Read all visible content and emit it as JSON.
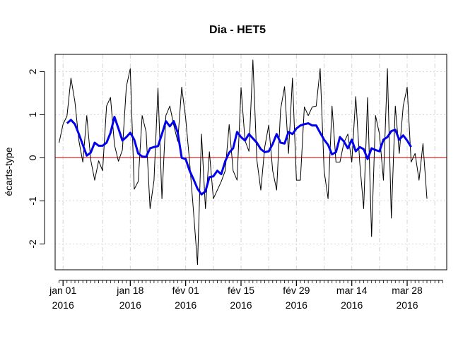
{
  "chart_data": {
    "type": "line",
    "title": "Dia - HET5",
    "xlabel": "",
    "ylabel": "écarts-type",
    "ylim": [
      -2.6,
      2.4
    ],
    "yticks": [
      -2,
      -1,
      0,
      1,
      2
    ],
    "ytick_labels": [
      "-2",
      "-1",
      "0",
      "1",
      "2"
    ],
    "x_start": "2015-12-30",
    "x_end": "2016-04-07",
    "xticks": [
      {
        "date": "2016-01-01",
        "label1": "jan 01",
        "label2": "2016"
      },
      {
        "date": "2016-01-18",
        "label1": "jan 18",
        "label2": "2016"
      },
      {
        "date": "2016-02-01",
        "label1": "fév 01",
        "label2": "2016"
      },
      {
        "date": "2016-02-15",
        "label1": "fév 15",
        "label2": "2016"
      },
      {
        "date": "2016-02-29",
        "label1": "fév 29",
        "label2": "2016"
      },
      {
        "date": "2016-03-14",
        "label1": "mar 14",
        "label2": "2016"
      },
      {
        "date": "2016-03-28",
        "label1": "mar 28",
        "label2": "2016"
      }
    ],
    "minor_tick_dates": [
      "2015-12-31",
      "2016-01-01",
      "2016-01-02",
      "2016-01-03",
      "2016-01-04",
      "2016-01-05",
      "2016-01-06",
      "2016-01-07",
      "2016-01-08",
      "2016-01-09",
      "2016-01-10",
      "2016-01-11",
      "2016-01-12",
      "2016-01-13",
      "2016-01-14",
      "2016-01-15",
      "2016-01-16",
      "2016-01-17",
      "2016-01-18",
      "2016-01-19",
      "2016-01-20",
      "2016-01-21",
      "2016-01-22",
      "2016-01-23",
      "2016-01-24",
      "2016-01-25",
      "2016-01-26",
      "2016-01-27",
      "2016-01-28",
      "2016-01-29",
      "2016-01-30",
      "2016-01-31",
      "2016-02-01",
      "2016-02-02",
      "2016-02-03",
      "2016-02-04",
      "2016-02-05",
      "2016-02-06",
      "2016-02-07",
      "2016-02-08",
      "2016-02-09",
      "2016-02-10",
      "2016-02-11",
      "2016-02-12",
      "2016-02-13",
      "2016-02-14",
      "2016-02-15",
      "2016-02-16",
      "2016-02-17",
      "2016-02-18",
      "2016-02-19",
      "2016-02-20",
      "2016-02-21",
      "2016-02-22",
      "2016-02-23",
      "2016-02-24",
      "2016-02-25",
      "2016-02-26",
      "2016-02-27",
      "2016-02-28",
      "2016-02-29",
      "2016-03-01",
      "2016-03-02",
      "2016-03-03",
      "2016-03-04",
      "2016-03-05",
      "2016-03-06",
      "2016-03-07",
      "2016-03-08",
      "2016-03-09",
      "2016-03-10",
      "2016-03-11",
      "2016-03-12",
      "2016-03-13",
      "2016-03-14",
      "2016-03-15",
      "2016-03-16",
      "2016-03-17",
      "2016-03-18",
      "2016-03-19",
      "2016-03-20",
      "2016-03-21",
      "2016-03-22",
      "2016-03-23",
      "2016-03-24",
      "2016-03-25",
      "2016-03-26",
      "2016-03-27",
      "2016-03-28",
      "2016-03-29",
      "2016-03-30",
      "2016-03-31",
      "2016-04-01",
      "2016-04-02",
      "2016-04-03",
      "2016-04-04",
      "2016-04-05",
      "2016-04-06"
    ],
    "vgrid_dates": [
      "2016-01-01",
      "2016-01-11",
      "2016-01-18",
      "2016-01-25",
      "2016-02-01",
      "2016-02-08",
      "2016-02-15",
      "2016-02-22",
      "2016-02-29",
      "2016-03-07",
      "2016-03-14",
      "2016-03-21",
      "2016-03-28",
      "2016-04-04"
    ],
    "grid": true,
    "zero_line": {
      "y": 0,
      "color": "#e00000"
    },
    "series": [
      {
        "color": "#000000",
        "line_width": 1,
        "points": [
          [
            "2015-12-31",
            0.35
          ],
          [
            "2016-01-01",
            0.78
          ],
          [
            "2016-01-02",
            0.97
          ],
          [
            "2016-01-03",
            1.85
          ],
          [
            "2016-01-04",
            1.3
          ],
          [
            "2016-01-05",
            0.4
          ],
          [
            "2016-01-06",
            -0.1
          ],
          [
            "2016-01-07",
            0.98
          ],
          [
            "2016-01-08",
            -0.05
          ],
          [
            "2016-01-09",
            -0.52
          ],
          [
            "2016-01-10",
            -0.07
          ],
          [
            "2016-01-11",
            -0.3
          ],
          [
            "2016-01-12",
            1.2
          ],
          [
            "2016-01-13",
            1.4
          ],
          [
            "2016-01-14",
            0.3
          ],
          [
            "2016-01-15",
            -0.08
          ],
          [
            "2016-01-16",
            0.18
          ],
          [
            "2016-01-17",
            1.65
          ],
          [
            "2016-01-18",
            2.07
          ],
          [
            "2016-01-19",
            -0.73
          ],
          [
            "2016-01-20",
            -0.55
          ],
          [
            "2016-01-21",
            0.98
          ],
          [
            "2016-01-22",
            0.6
          ],
          [
            "2016-01-23",
            -1.18
          ],
          [
            "2016-01-24",
            -0.52
          ],
          [
            "2016-01-25",
            1.62
          ],
          [
            "2016-01-26",
            -0.95
          ],
          [
            "2016-01-27",
            0.98
          ],
          [
            "2016-01-28",
            1.2
          ],
          [
            "2016-01-29",
            0.75
          ],
          [
            "2016-01-30",
            0.38
          ],
          [
            "2016-01-31",
            1.64
          ],
          [
            "2016-02-01",
            0.92
          ],
          [
            "2016-02-02",
            -0.1
          ],
          [
            "2016-02-03",
            -1.27
          ],
          [
            "2016-02-04",
            -2.48
          ],
          [
            "2016-02-05",
            0.55
          ],
          [
            "2016-02-06",
            -1.18
          ],
          [
            "2016-02-07",
            0.14
          ],
          [
            "2016-02-08",
            -0.95
          ],
          [
            "2016-02-09",
            -0.75
          ],
          [
            "2016-02-10",
            -0.55
          ],
          [
            "2016-02-11",
            -0.3
          ],
          [
            "2016-02-12",
            0.77
          ],
          [
            "2016-02-13",
            -0.3
          ],
          [
            "2016-02-14",
            -0.52
          ],
          [
            "2016-02-15",
            1.63
          ],
          [
            "2016-02-16",
            0.4
          ],
          [
            "2016-02-17",
            0.15
          ],
          [
            "2016-02-18",
            2.27
          ],
          [
            "2016-02-19",
            -0.05
          ],
          [
            "2016-02-20",
            -0.75
          ],
          [
            "2016-02-21",
            0.25
          ],
          [
            "2016-02-22",
            0.76
          ],
          [
            "2016-02-23",
            -0.3
          ],
          [
            "2016-02-24",
            -0.75
          ],
          [
            "2016-02-25",
            1.12
          ],
          [
            "2016-02-26",
            1.65
          ],
          [
            "2016-02-27",
            0.1
          ],
          [
            "2016-02-28",
            1.85
          ],
          [
            "2016-02-29",
            -0.52
          ],
          [
            "2016-03-01",
            -0.52
          ],
          [
            "2016-03-02",
            1.18
          ],
          [
            "2016-03-03",
            0.98
          ],
          [
            "2016-03-04",
            1.18
          ],
          [
            "2016-03-05",
            1.2
          ],
          [
            "2016-03-06",
            2.07
          ],
          [
            "2016-03-07",
            -0.3
          ],
          [
            "2016-03-08",
            -0.95
          ],
          [
            "2016-03-09",
            1.2
          ],
          [
            "2016-03-10",
            -0.1
          ],
          [
            "2016-03-11",
            -0.1
          ],
          [
            "2016-03-12",
            0.35
          ],
          [
            "2016-03-13",
            0.55
          ],
          [
            "2016-03-14",
            -0.1
          ],
          [
            "2016-03-15",
            1.42
          ],
          [
            "2016-03-16",
            -0.1
          ],
          [
            "2016-03-17",
            -1.18
          ],
          [
            "2016-03-18",
            1.4
          ],
          [
            "2016-03-19",
            -1.83
          ],
          [
            "2016-03-20",
            0.98
          ],
          [
            "2016-03-21",
            0.55
          ],
          [
            "2016-03-22",
            -0.52
          ],
          [
            "2016-03-23",
            2.07
          ],
          [
            "2016-03-24",
            -1.4
          ],
          [
            "2016-03-25",
            1.2
          ],
          [
            "2016-03-26",
            0.1
          ],
          [
            "2016-03-27",
            1.2
          ],
          [
            "2016-03-28",
            1.64
          ],
          [
            "2016-03-29",
            -0.1
          ],
          [
            "2016-03-30",
            0.1
          ],
          [
            "2016-03-31",
            -0.52
          ],
          [
            "2016-04-01",
            0.33
          ],
          [
            "2016-04-02",
            -0.95
          ]
        ]
      },
      {
        "color": "#0000ee",
        "line_width": 3,
        "points": [
          [
            "2016-01-02",
            0.8
          ],
          [
            "2016-01-03",
            0.88
          ],
          [
            "2016-01-04",
            0.78
          ],
          [
            "2016-01-05",
            0.55
          ],
          [
            "2016-01-06",
            0.3
          ],
          [
            "2016-01-07",
            0.05
          ],
          [
            "2016-01-08",
            0.12
          ],
          [
            "2016-01-09",
            0.35
          ],
          [
            "2016-01-10",
            0.28
          ],
          [
            "2016-01-11",
            0.28
          ],
          [
            "2016-01-12",
            0.35
          ],
          [
            "2016-01-13",
            0.58
          ],
          [
            "2016-01-14",
            0.95
          ],
          [
            "2016-01-15",
            0.68
          ],
          [
            "2016-01-16",
            0.4
          ],
          [
            "2016-01-17",
            0.48
          ],
          [
            "2016-01-18",
            0.58
          ],
          [
            "2016-01-19",
            0.42
          ],
          [
            "2016-01-20",
            0.1
          ],
          [
            "2016-01-21",
            0.03
          ],
          [
            "2016-01-22",
            0.02
          ],
          [
            "2016-01-23",
            0.22
          ],
          [
            "2016-01-24",
            0.25
          ],
          [
            "2016-01-25",
            0.27
          ],
          [
            "2016-01-26",
            0.55
          ],
          [
            "2016-01-27",
            0.85
          ],
          [
            "2016-01-28",
            0.73
          ],
          [
            "2016-01-29",
            0.85
          ],
          [
            "2016-01-30",
            0.58
          ],
          [
            "2016-01-31",
            0.0
          ],
          [
            "2016-02-01",
            -0.03
          ],
          [
            "2016-02-02",
            -0.3
          ],
          [
            "2016-02-03",
            -0.5
          ],
          [
            "2016-02-04",
            -0.72
          ],
          [
            "2016-02-05",
            -0.85
          ],
          [
            "2016-02-06",
            -0.78
          ],
          [
            "2016-02-07",
            -0.45
          ],
          [
            "2016-02-08",
            -0.43
          ],
          [
            "2016-02-09",
            -0.3
          ],
          [
            "2016-02-10",
            -0.38
          ],
          [
            "2016-02-11",
            -0.08
          ],
          [
            "2016-02-12",
            0.12
          ],
          [
            "2016-02-13",
            0.22
          ],
          [
            "2016-02-14",
            0.6
          ],
          [
            "2016-02-15",
            0.48
          ],
          [
            "2016-02-16",
            0.4
          ],
          [
            "2016-02-17",
            0.55
          ],
          [
            "2016-02-18",
            0.45
          ],
          [
            "2016-02-19",
            0.35
          ],
          [
            "2016-02-20",
            0.2
          ],
          [
            "2016-02-21",
            0.13
          ],
          [
            "2016-02-22",
            0.15
          ],
          [
            "2016-02-23",
            0.32
          ],
          [
            "2016-02-24",
            0.55
          ],
          [
            "2016-02-25",
            0.35
          ],
          [
            "2016-02-26",
            0.33
          ],
          [
            "2016-02-27",
            0.6
          ],
          [
            "2016-02-28",
            0.55
          ],
          [
            "2016-02-29",
            0.68
          ],
          [
            "2016-03-01",
            0.75
          ],
          [
            "2016-03-02",
            0.78
          ],
          [
            "2016-03-03",
            0.8
          ],
          [
            "2016-03-04",
            0.75
          ],
          [
            "2016-03-05",
            0.75
          ],
          [
            "2016-03-06",
            0.58
          ],
          [
            "2016-03-07",
            0.42
          ],
          [
            "2016-03-08",
            0.3
          ],
          [
            "2016-03-09",
            0.08
          ],
          [
            "2016-03-10",
            0.13
          ],
          [
            "2016-03-11",
            0.48
          ],
          [
            "2016-03-12",
            0.38
          ],
          [
            "2016-03-13",
            0.22
          ],
          [
            "2016-03-14",
            0.42
          ],
          [
            "2016-03-15",
            0.15
          ],
          [
            "2016-03-16",
            0.25
          ],
          [
            "2016-03-17",
            0.2
          ],
          [
            "2016-03-18",
            -0.03
          ],
          [
            "2016-03-19",
            0.22
          ],
          [
            "2016-03-20",
            0.18
          ],
          [
            "2016-03-21",
            0.15
          ],
          [
            "2016-03-22",
            0.42
          ],
          [
            "2016-03-23",
            0.48
          ],
          [
            "2016-03-24",
            0.62
          ],
          [
            "2016-03-25",
            0.65
          ],
          [
            "2016-03-26",
            0.42
          ],
          [
            "2016-03-27",
            0.52
          ],
          [
            "2016-03-28",
            0.4
          ],
          [
            "2016-03-29",
            0.25
          ]
        ]
      }
    ]
  }
}
